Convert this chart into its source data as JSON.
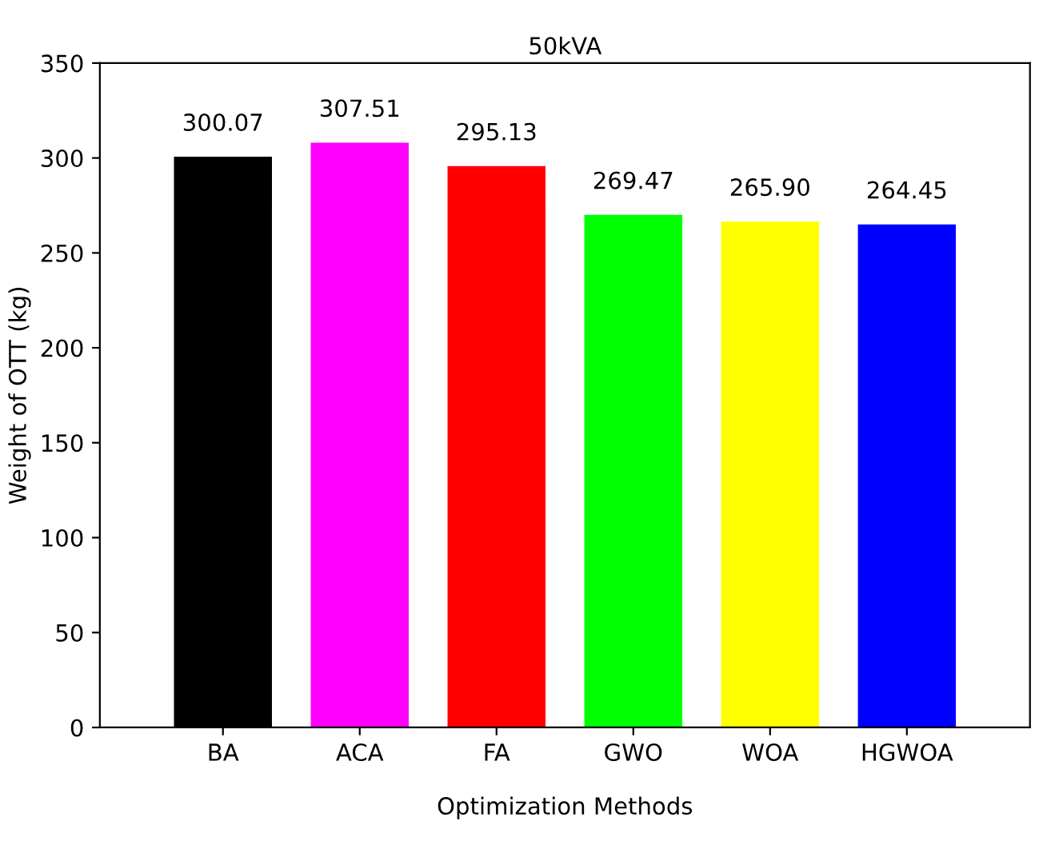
{
  "chart_data": {
    "type": "bar",
    "title": "50kVA",
    "xlabel": "Optimization Methods",
    "ylabel": "Weight of OTT (kg)",
    "categories": [
      "BA",
      "ACA",
      "FA",
      "GWO",
      "WOA",
      "HGWOA"
    ],
    "values": [
      300.07,
      307.51,
      295.13,
      269.47,
      265.9,
      264.45
    ],
    "value_labels": [
      "300.07",
      "307.51",
      "295.13",
      "269.47",
      "265.90",
      "264.45"
    ],
    "colors": [
      "#000000",
      "#ff00ff",
      "#ff0000",
      "#00ff00",
      "#ffff00",
      "#0000ff"
    ],
    "ylim": [
      0,
      350
    ],
    "yticks": [
      0,
      50,
      100,
      150,
      200,
      250,
      300,
      350
    ],
    "grid": false,
    "legend": false
  }
}
